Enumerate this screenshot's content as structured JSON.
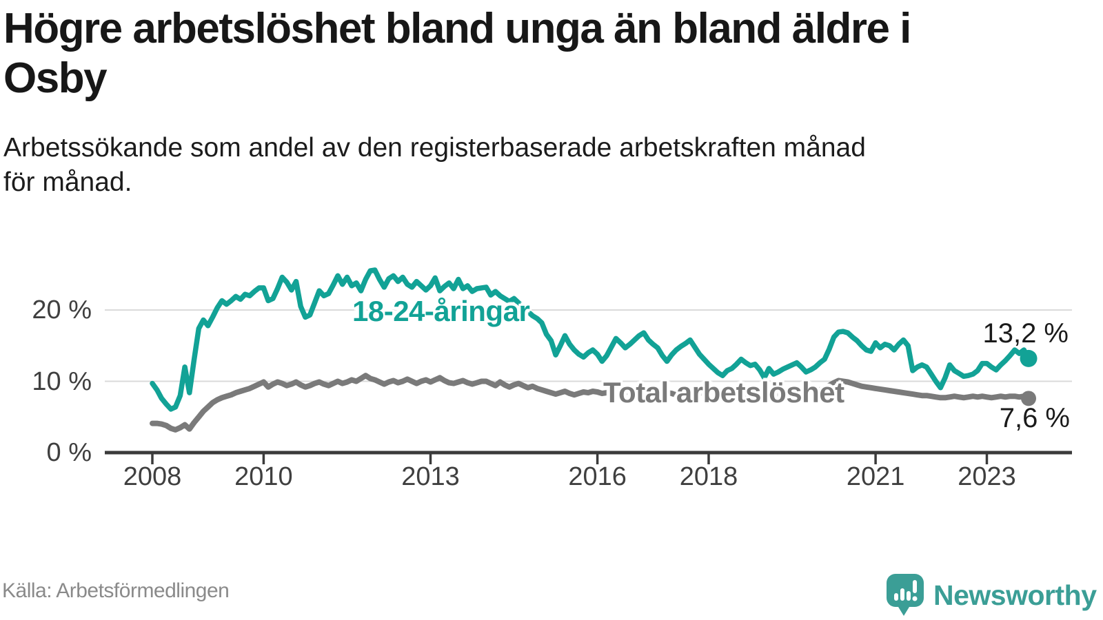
{
  "header": {
    "title": "Högre arbetslöshet bland unga än bland äldre i\nOsby",
    "subtitle": "Arbetssökande som andel av den registerbaserade arbetskraften månad\nför månad."
  },
  "source": {
    "label": "Källa: Arbetsförmedlingen"
  },
  "logo": {
    "text": "Newsworthy"
  },
  "colors": {
    "youth_line": "#12a296",
    "total_line": "#7a7a7a",
    "grid": "#dadada",
    "axis": "#3b3b3b",
    "tick_label": "#3f3f3f",
    "end_label": "#1a1a1a",
    "logo_teal": "#3b9e96",
    "source_gray": "#8a8a8a"
  },
  "chart_data": {
    "type": "line",
    "title": "Arbetssökande som andel av den registerbaserade arbetskraften, månad för månad",
    "xlabel": "",
    "ylabel": "",
    "frequency": "monthly",
    "x_start": "2008-01",
    "x_end": "2023-10",
    "ylim": [
      0,
      27
    ],
    "grid": true,
    "y_ticks": [
      {
        "label": "0 %",
        "value": 0
      },
      {
        "label": "10 %",
        "value": 10
      },
      {
        "label": "20 %",
        "value": 20
      }
    ],
    "x_ticks": [
      {
        "label": "2008",
        "year": 2008
      },
      {
        "label": "2010",
        "year": 2010
      },
      {
        "label": "2013",
        "year": 2013
      },
      {
        "label": "2016",
        "year": 2016
      },
      {
        "label": "2018",
        "year": 2018
      },
      {
        "label": "2021",
        "year": 2021
      },
      {
        "label": "2023",
        "year": 2023
      }
    ],
    "series": [
      {
        "name": "Total arbetslöshet",
        "end_label": "7,6 %",
        "end_value": 7.6,
        "color": "#7a7a7a",
        "line_width": 8,
        "values": [
          4.1,
          4.1,
          4.0,
          3.8,
          3.4,
          3.2,
          3.5,
          3.9,
          3.3,
          4.2,
          5.0,
          5.8,
          6.4,
          7.0,
          7.4,
          7.7,
          7.9,
          8.1,
          8.4,
          8.6,
          8.8,
          9.0,
          9.3,
          9.6,
          9.9,
          9.2,
          9.6,
          9.9,
          9.7,
          9.4,
          9.6,
          9.9,
          9.5,
          9.2,
          9.4,
          9.7,
          9.9,
          9.6,
          9.4,
          9.7,
          10.0,
          9.7,
          9.9,
          10.2,
          10.0,
          10.4,
          10.8,
          10.4,
          10.2,
          9.9,
          9.6,
          9.9,
          10.1,
          9.8,
          10.0,
          10.3,
          10.0,
          9.7,
          10.0,
          10.2,
          9.9,
          10.2,
          10.5,
          10.1,
          9.8,
          9.7,
          9.9,
          10.1,
          9.8,
          9.6,
          9.8,
          10.0,
          10.0,
          9.7,
          9.4,
          9.9,
          9.5,
          9.2,
          9.5,
          9.7,
          9.4,
          9.1,
          9.3,
          9.0,
          8.8,
          8.6,
          8.4,
          8.2,
          8.4,
          8.6,
          8.3,
          8.1,
          8.3,
          8.5,
          8.4,
          8.6,
          8.5,
          8.3,
          8.4,
          8.6,
          8.4,
          8.2,
          8.4,
          8.6,
          8.5,
          8.3,
          8.5,
          8.7,
          8.5,
          8.3,
          8.2,
          8.4,
          8.3,
          8.1,
          8.3,
          8.5,
          8.4,
          8.2,
          8.3,
          8.4,
          8.2,
          8.0,
          7.9,
          8.1,
          8.0,
          7.8,
          8.0,
          8.2,
          8.0,
          7.9,
          8.0,
          8.1,
          8.0,
          7.9,
          8.1,
          8.2,
          8.0,
          8.2,
          8.4,
          8.3,
          8.1,
          8.3,
          8.4,
          8.6,
          8.8,
          9.0,
          9.4,
          9.8,
          10.1,
          10.0,
          9.9,
          9.7,
          9.5,
          9.3,
          9.2,
          9.1,
          9.0,
          8.9,
          8.8,
          8.7,
          8.6,
          8.5,
          8.4,
          8.3,
          8.2,
          8.1,
          8.0,
          8.0,
          7.9,
          7.8,
          7.7,
          7.7,
          7.8,
          7.9,
          7.8,
          7.7,
          7.8,
          7.9,
          7.8,
          7.9,
          7.8,
          7.7,
          7.8,
          7.9,
          7.8,
          7.9,
          7.9,
          7.8,
          7.9,
          7.6
        ]
      },
      {
        "name": "18-24-åringar",
        "end_label": "13,2 %",
        "end_value": 13.2,
        "color": "#12a296",
        "line_width": 7.5,
        "values": [
          9.7,
          8.8,
          7.6,
          6.8,
          6.1,
          6.4,
          8.0,
          12.0,
          8.4,
          13.0,
          17.4,
          18.6,
          17.8,
          19.0,
          20.3,
          21.3,
          20.8,
          21.3,
          21.9,
          21.5,
          22.2,
          22.0,
          22.6,
          23.1,
          23.1,
          21.3,
          21.6,
          23.0,
          24.6,
          23.9,
          22.8,
          24.0,
          20.5,
          19.0,
          19.3,
          21.0,
          22.7,
          22.0,
          22.3,
          23.5,
          24.8,
          23.6,
          24.6,
          23.4,
          23.8,
          22.7,
          24.3,
          25.5,
          25.6,
          24.3,
          23.2,
          24.4,
          24.8,
          24.0,
          24.6,
          23.6,
          23.2,
          24.0,
          23.4,
          22.8,
          23.4,
          24.5,
          22.7,
          23.3,
          23.8,
          23.0,
          24.3,
          23.0,
          23.4,
          22.6,
          23.0,
          23.1,
          23.2,
          22.1,
          22.6,
          22.0,
          21.6,
          21.2,
          21.6,
          21.0,
          20.4,
          19.8,
          19.2,
          18.8,
          18.2,
          16.6,
          15.7,
          13.7,
          15.0,
          16.4,
          15.2,
          14.4,
          13.8,
          13.4,
          14.0,
          14.4,
          13.8,
          12.8,
          13.6,
          14.8,
          16.0,
          15.4,
          14.7,
          15.2,
          15.8,
          16.4,
          16.8,
          15.8,
          15.2,
          14.7,
          13.6,
          12.8,
          13.7,
          14.4,
          14.9,
          15.3,
          15.8,
          14.8,
          13.8,
          13.1,
          12.4,
          11.8,
          11.2,
          10.8,
          11.5,
          11.8,
          12.4,
          13.1,
          12.6,
          12.2,
          12.4,
          11.6,
          10.5,
          11.8,
          11.0,
          11.3,
          11.7,
          12.0,
          12.3,
          12.6,
          12.0,
          11.3,
          11.6,
          12.0,
          12.6,
          13.1,
          14.5,
          16.2,
          16.9,
          17.0,
          16.8,
          16.2,
          15.7,
          15.0,
          14.4,
          14.2,
          15.4,
          14.7,
          15.2,
          15.0,
          14.4,
          15.2,
          15.8,
          15.0,
          11.5,
          12.0,
          12.3,
          12.0,
          11.0,
          10.0,
          9.1,
          10.5,
          12.3,
          11.5,
          11.1,
          10.7,
          10.8,
          11.0,
          11.5,
          12.5,
          12.5,
          12.0,
          11.6,
          12.3,
          12.9,
          13.6,
          14.4,
          13.9,
          14.4,
          13.2
        ]
      }
    ]
  }
}
